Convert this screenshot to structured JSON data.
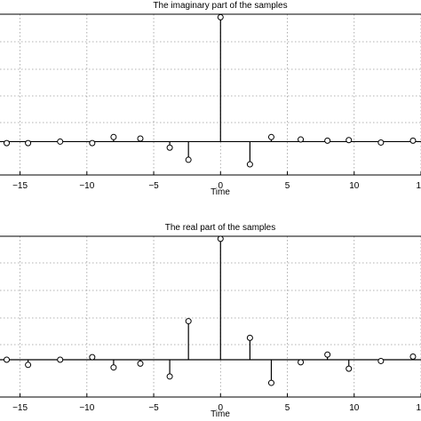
{
  "chart_data": [
    {
      "type": "stem",
      "title": "The imaginary part of the samples",
      "xlabel": "Time",
      "xticks": [
        "−15",
        "−10",
        "−5",
        "0",
        "5",
        "10",
        "1"
      ],
      "xlim": [
        -16.5,
        15
      ],
      "ylim": [
        -1.1,
        4.2
      ],
      "x": [
        -16,
        -14.4,
        -12,
        -9.6,
        -8,
        -6,
        -3.8,
        -2.4,
        0,
        2.2,
        3.8,
        6,
        8,
        9.6,
        12,
        14.4
      ],
      "values": [
        -0.05,
        -0.05,
        0,
        -0.05,
        0.15,
        0.1,
        -0.2,
        -0.6,
        4.1,
        -0.75,
        0.15,
        0.07,
        0.03,
        0.05,
        -0.03,
        0.03
      ]
    },
    {
      "type": "stem",
      "title": "The real part of the samples",
      "xlabel": "Time",
      "xticks": [
        "−15",
        "−10",
        "−5",
        "0",
        "5",
        "10",
        "1"
      ],
      "xlim": [
        -16.5,
        15
      ],
      "ylim": [
        -1.45,
        4.8
      ],
      "x": [
        -16,
        -14.4,
        -12,
        -9.6,
        -8,
        -6,
        -3.8,
        -2.4,
        0,
        2.2,
        3.8,
        6,
        8,
        9.6,
        12,
        14.4
      ],
      "values": [
        0,
        -0.2,
        0,
        0.1,
        -0.3,
        -0.15,
        -0.65,
        1.5,
        4.7,
        0.85,
        -0.9,
        -0.1,
        0.2,
        -0.35,
        -0.05,
        0.12
      ]
    }
  ]
}
